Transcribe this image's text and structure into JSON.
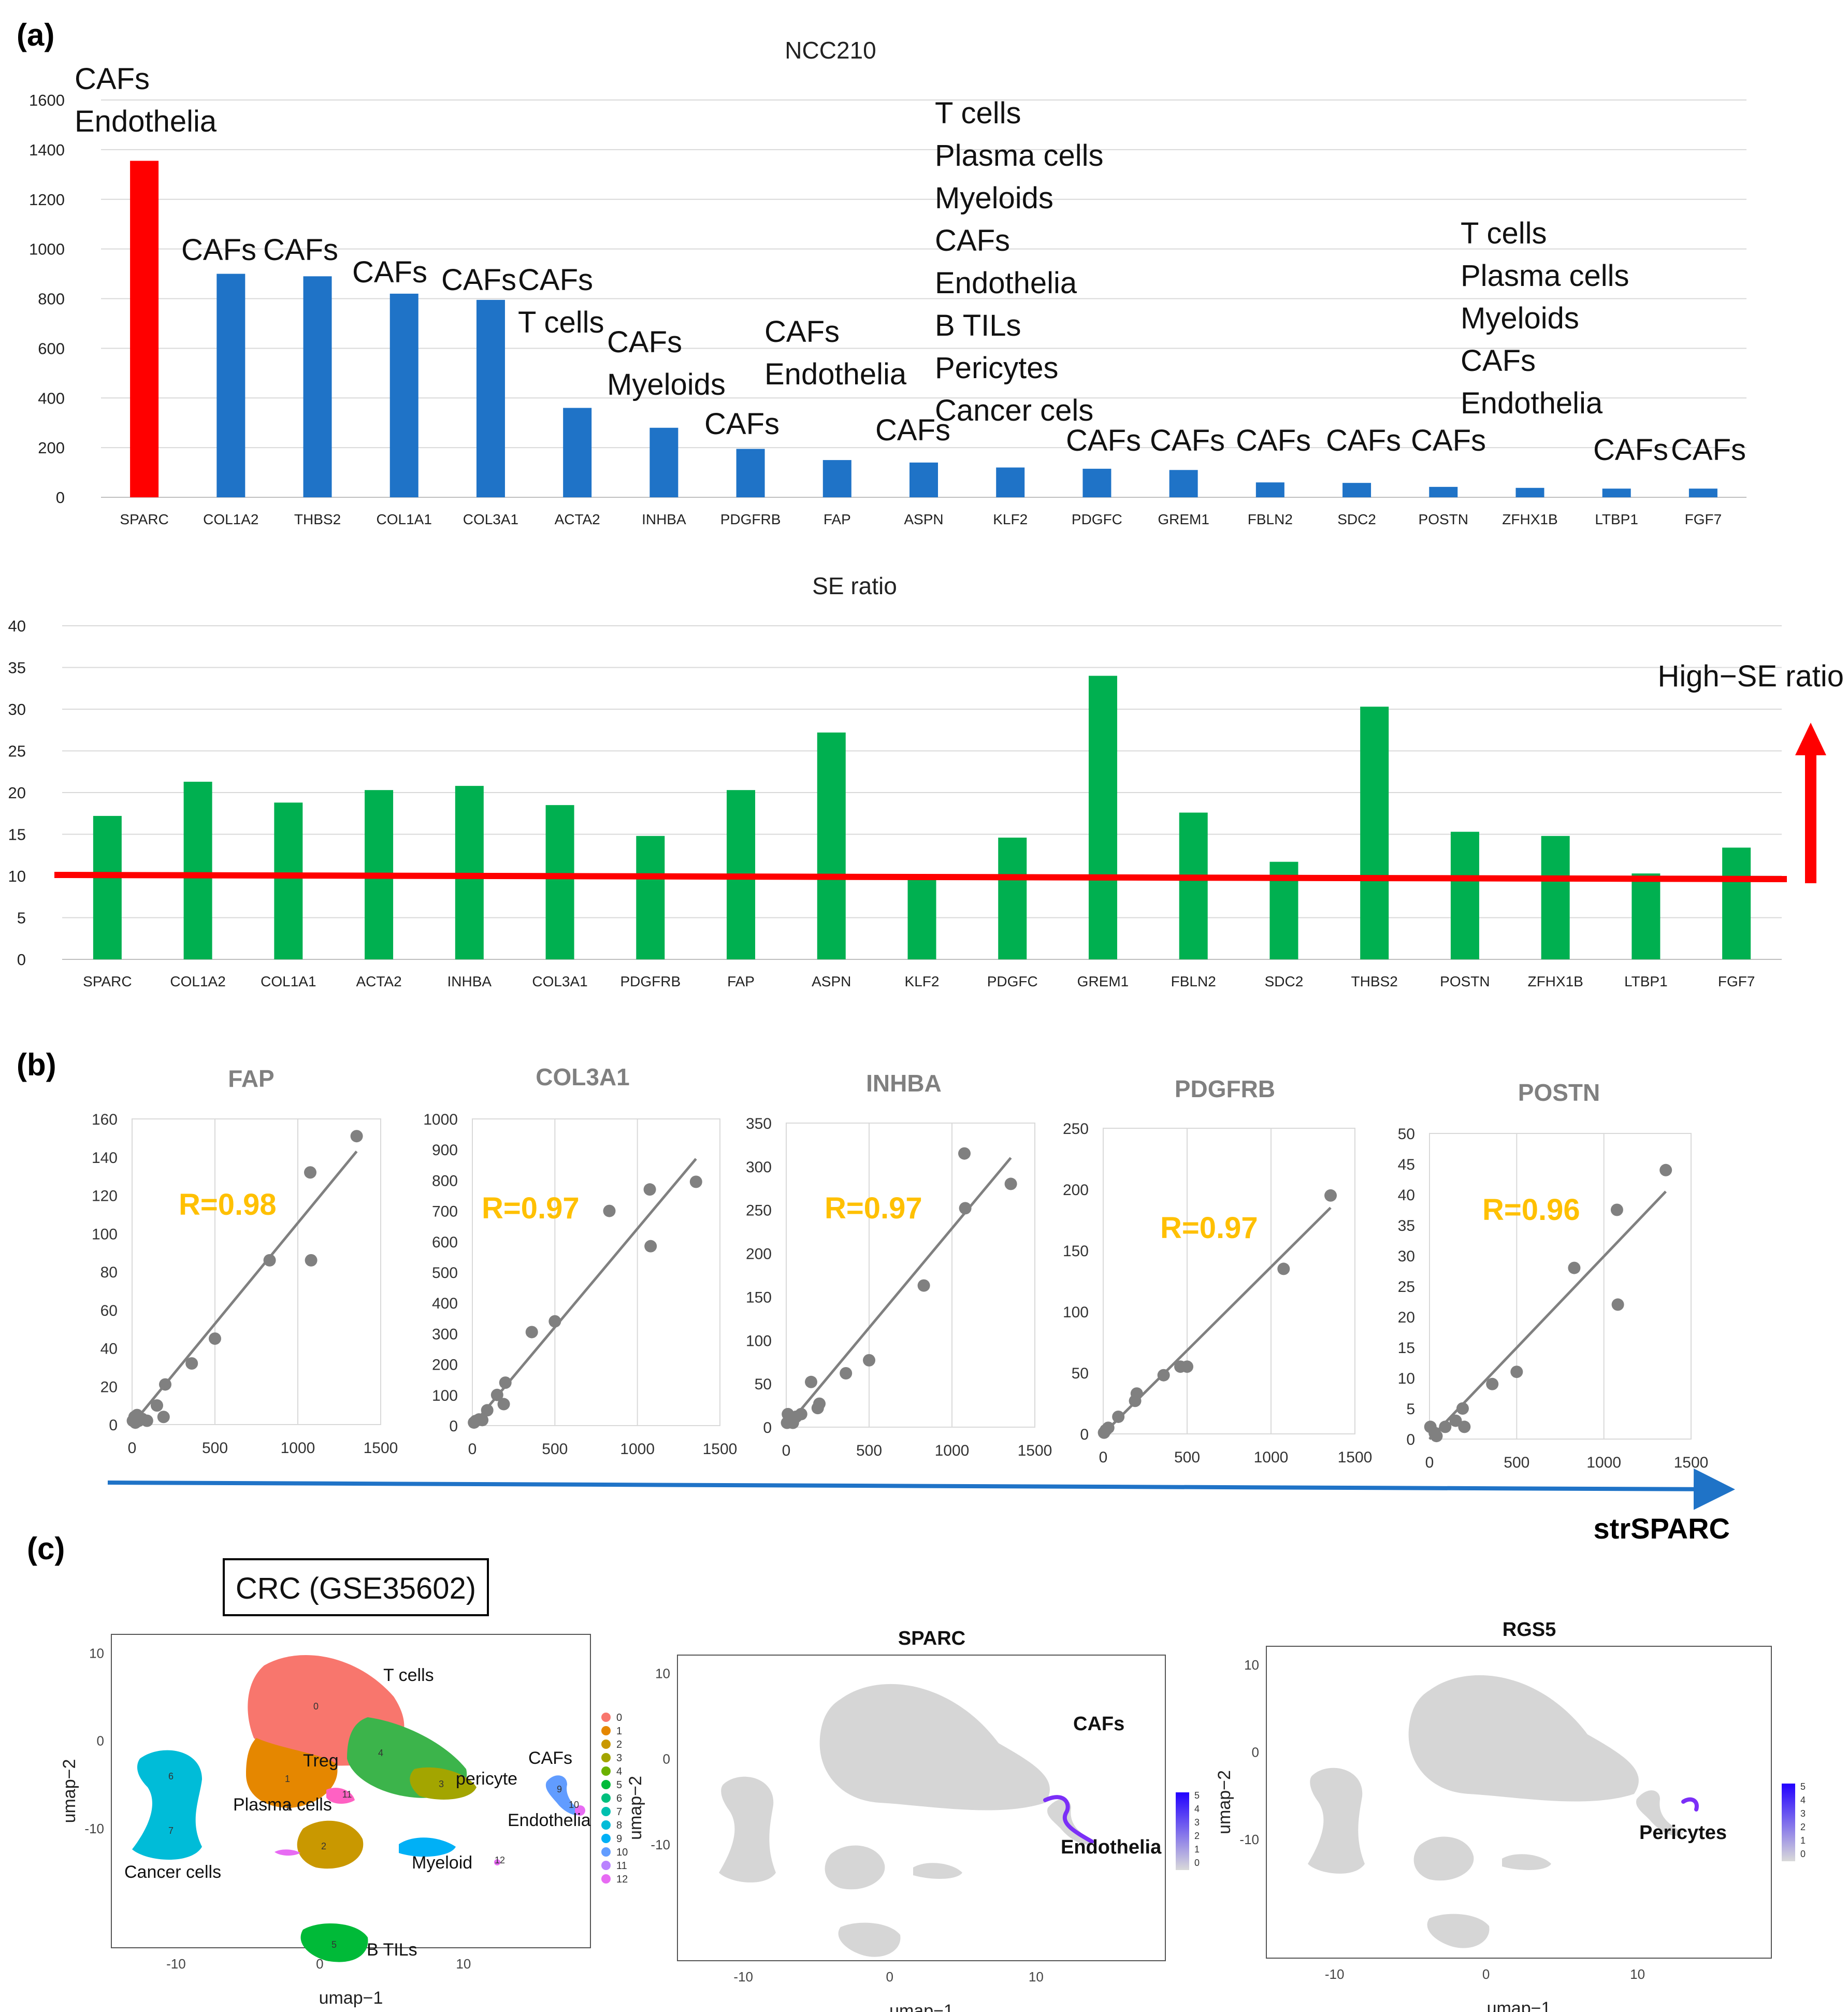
{
  "panels": {
    "a": "(a)",
    "b": "(b)",
    "c": "(c)"
  },
  "colors": {
    "sparc_bar": "#ff0000",
    "blue_bar": "#1f73c7",
    "green_bar": "#00b050",
    "threshold": "#ff0000",
    "axis_arrow": "#1f73c7",
    "scatter_point": "#808080",
    "r_value": "#ffc000",
    "title_gray": "#808080",
    "grid": "#d9d9d9"
  },
  "chart_data": [
    {
      "id": "ncc210",
      "type": "bar",
      "title": "NCC210",
      "ylim": [
        0,
        1600
      ],
      "yticks": [
        "0",
        "200",
        "400",
        "600",
        "800",
        "1000",
        "1200",
        "1400",
        "1600"
      ],
      "grid": true,
      "categories": [
        "SPARC",
        "COL1A2",
        "THBS2",
        "COL1A1",
        "COL3A1",
        "ACTA2",
        "INHBA",
        "PDGFRB",
        "FAP",
        "ASPN",
        "KLF2",
        "PDGFC",
        "GREM1",
        "FBLN2",
        "SDC2",
        "POSTN",
        "ZFHX1B",
        "LTBP1",
        "FGF7"
      ],
      "values": [
        1355,
        900,
        890,
        820,
        795,
        360,
        280,
        195,
        150,
        140,
        120,
        115,
        110,
        60,
        58,
        42,
        38,
        35,
        35
      ],
      "highlight_index": 0,
      "annotations": [
        {
          "lines": [
            "CAFs",
            "Endothelia"
          ]
        },
        {
          "lines": [
            "CAFs"
          ]
        },
        {
          "lines": [
            "CAFs"
          ]
        },
        {
          "lines": [
            "CAFs"
          ]
        },
        {
          "lines": [
            "CAFs"
          ]
        },
        {
          "lines": [
            "CAFs",
            "T cells"
          ]
        },
        {
          "lines": [
            "CAFs",
            "Myeloids"
          ]
        },
        {
          "lines": [
            "CAFs"
          ]
        },
        {
          "lines": [
            "CAFs",
            "Endothelia"
          ]
        },
        {
          "lines": [
            "CAFs"
          ]
        },
        {
          "lines": [
            "T cells",
            "Plasma cells",
            "Myeloids",
            "CAFs",
            "Endothelia",
            "B TILs",
            "Pericytes",
            "Cancer cels"
          ]
        },
        {
          "lines": [
            "CAFs"
          ]
        },
        {
          "lines": [
            "CAFs"
          ]
        },
        {
          "lines": [
            "CAFs"
          ]
        },
        {
          "lines": [
            "CAFs"
          ]
        },
        {
          "lines": [
            "CAFs"
          ]
        },
        {
          "lines": [
            "T cells",
            "Plasma cells",
            "Myeloids",
            "CAFs",
            "Endothelia"
          ]
        },
        {
          "lines": [
            "CAFs"
          ]
        },
        {
          "lines": [
            "CAFs"
          ]
        }
      ]
    },
    {
      "id": "se-ratio",
      "type": "bar",
      "title": "SE ratio",
      "ylim": [
        0,
        40
      ],
      "yticks": [
        "0",
        "5",
        "10",
        "15",
        "20",
        "25",
        "30",
        "35",
        "40"
      ],
      "grid": true,
      "categories": [
        "SPARC",
        "COL1A2",
        "COL1A1",
        "ACTA2",
        "INHBA",
        "COL3A1",
        "PDGFRB",
        "FAP",
        "ASPN",
        "KLF2",
        "PDGFC",
        "GREM1",
        "FBLN2",
        "SDC2",
        "THBS2",
        "POSTN",
        "ZFHX1B",
        "LTBP1",
        "FGF7"
      ],
      "values": [
        17.2,
        21.3,
        18.8,
        20.3,
        20.8,
        18.5,
        14.8,
        20.3,
        27.2,
        10.2,
        14.6,
        34.0,
        17.6,
        11.7,
        30.3,
        15.3,
        14.8,
        10.3,
        13.4
      ],
      "threshold": 10,
      "threshold_label": "High−SE ratio"
    },
    {
      "id": "fap",
      "type": "scatter",
      "title": "FAP",
      "r_label": "R=0.98",
      "xlim": [
        0,
        1500
      ],
      "ylim": [
        0,
        160
      ],
      "xticks": [
        "0",
        "500",
        "1000",
        "1500"
      ],
      "yticks": [
        "0",
        "20",
        "40",
        "60",
        "80",
        "100",
        "120",
        "140",
        "160"
      ],
      "trend": [
        [
          0,
          0
        ],
        [
          1355,
          143
        ]
      ],
      "points": [
        [
          5,
          2
        ],
        [
          15,
          4
        ],
        [
          20,
          1
        ],
        [
          30,
          5
        ],
        [
          40,
          2
        ],
        [
          60,
          3
        ],
        [
          90,
          2
        ],
        [
          150,
          10
        ],
        [
          190,
          4
        ],
        [
          200,
          21
        ],
        [
          360,
          32
        ],
        [
          500,
          45
        ],
        [
          830,
          86
        ],
        [
          1075,
          132
        ],
        [
          1080,
          86
        ],
        [
          1355,
          151
        ]
      ]
    },
    {
      "id": "col3a1",
      "type": "scatter",
      "title": "COL3A1",
      "r_label": "R=0.97",
      "xlim": [
        0,
        1500
      ],
      "ylim": [
        0,
        1000
      ],
      "xticks": [
        "0",
        "500",
        "1000",
        "1500"
      ],
      "yticks": [
        "0",
        "100",
        "200",
        "300",
        "400",
        "500",
        "600",
        "700",
        "800",
        "900",
        "1000"
      ],
      "trend": [
        [
          0,
          0
        ],
        [
          1355,
          870
        ]
      ],
      "points": [
        [
          10,
          10
        ],
        [
          20,
          15
        ],
        [
          40,
          20
        ],
        [
          60,
          18
        ],
        [
          90,
          50
        ],
        [
          150,
          100
        ],
        [
          190,
          70
        ],
        [
          200,
          140
        ],
        [
          360,
          305
        ],
        [
          500,
          340
        ],
        [
          830,
          700
        ],
        [
          1075,
          770
        ],
        [
          1080,
          585
        ],
        [
          1355,
          795
        ]
      ]
    },
    {
      "id": "inhba",
      "type": "scatter",
      "title": "INHBA",
      "r_label": "R=0.97",
      "xlim": [
        0,
        1500
      ],
      "ylim": [
        0,
        350
      ],
      "xticks": [
        "0",
        "500",
        "1000",
        "1500"
      ],
      "yticks": [
        "0",
        "50",
        "100",
        "150",
        "200",
        "250",
        "300",
        "350"
      ],
      "trend": [
        [
          0,
          0
        ],
        [
          1355,
          310
        ]
      ],
      "points": [
        [
          5,
          5
        ],
        [
          10,
          15
        ],
        [
          20,
          8
        ],
        [
          40,
          5
        ],
        [
          60,
          12
        ],
        [
          90,
          15
        ],
        [
          150,
          52
        ],
        [
          190,
          22
        ],
        [
          200,
          27
        ],
        [
          360,
          62
        ],
        [
          500,
          77
        ],
        [
          830,
          163
        ],
        [
          1075,
          315
        ],
        [
          1080,
          252
        ],
        [
          1355,
          280
        ]
      ]
    },
    {
      "id": "pdgfrb",
      "type": "scatter",
      "title": "PDGFRB",
      "r_label": "R=0.97",
      "xlim": [
        0,
        1500
      ],
      "ylim": [
        0,
        250
      ],
      "xticks": [
        "0",
        "500",
        "1000",
        "1500"
      ],
      "yticks": [
        "0",
        "50",
        "100",
        "150",
        "200",
        "250"
      ],
      "trend": [
        [
          0,
          0
        ],
        [
          1355,
          185
        ]
      ],
      "points": [
        [
          5,
          1
        ],
        [
          15,
          3
        ],
        [
          30,
          5
        ],
        [
          90,
          14
        ],
        [
          190,
          27
        ],
        [
          200,
          33
        ],
        [
          360,
          48
        ],
        [
          460,
          55
        ],
        [
          500,
          55
        ],
        [
          1075,
          135
        ],
        [
          1355,
          195
        ]
      ]
    },
    {
      "id": "postn",
      "type": "scatter",
      "title": "POSTN",
      "r_label": "R=0.96",
      "xlim": [
        0,
        1500
      ],
      "ylim": [
        0,
        50
      ],
      "xticks": [
        "0",
        "500",
        "1000",
        "1500"
      ],
      "yticks": [
        "0",
        "5",
        "10",
        "15",
        "20",
        "25",
        "30",
        "35",
        "40",
        "45",
        "50"
      ],
      "trend": [
        [
          0,
          0
        ],
        [
          1355,
          40.5
        ]
      ],
      "points": [
        [
          5,
          2
        ],
        [
          30,
          1
        ],
        [
          40,
          0.5
        ],
        [
          90,
          2
        ],
        [
          150,
          3
        ],
        [
          190,
          5
        ],
        [
          200,
          2
        ],
        [
          360,
          9
        ],
        [
          500,
          11
        ],
        [
          830,
          28
        ],
        [
          1075,
          37.5
        ],
        [
          1080,
          22
        ],
        [
          1355,
          44
        ]
      ]
    }
  ],
  "b_axis_label": "strSPARC",
  "panel_c": {
    "dataset_label": "CRC (GSE35602)",
    "umap1": {
      "xlabel": "umap−1",
      "ylabel": "umap−2",
      "xticks": [
        "-10",
        "0",
        "10"
      ],
      "yticks": [
        "10",
        "0",
        "-10"
      ],
      "cluster_labels": [
        "T cells",
        "Treg",
        "Plasma cells",
        "Myeloid",
        "Cancer cells",
        "B TILs",
        "CAFs",
        "pericyte",
        "Endothelia"
      ],
      "cluster_numbers": [
        "0",
        "1",
        "2",
        "3",
        "4",
        "5",
        "6",
        "7",
        "8",
        "9",
        "10",
        "11",
        "12"
      ],
      "legend": [
        "0",
        "1",
        "2",
        "3",
        "4",
        "5",
        "6",
        "7",
        "8",
        "9",
        "10",
        "11",
        "12"
      ],
      "legend_colors": [
        "#f8766d",
        "#e58700",
        "#c99800",
        "#a3a500",
        "#6bb100",
        "#00ba38",
        "#00bf7d",
        "#00c0af",
        "#00bcd8",
        "#00b0f6",
        "#619cff",
        "#b983ff",
        "#e76bf3"
      ]
    },
    "umap2": {
      "title": "SPARC",
      "xlabel": "umap−1",
      "ylabel": "umap−2",
      "xticks": [
        "-10",
        "0",
        "10"
      ],
      "yticks": [
        "10",
        "0",
        "-10"
      ],
      "labels": [
        "CAFs",
        "Endothelia"
      ],
      "scale_ticks": [
        "5",
        "4",
        "3",
        "2",
        "1",
        "0"
      ]
    },
    "umap3": {
      "title": "RGS5",
      "xlabel": "umap−1",
      "ylabel": "umap−2",
      "xticks": [
        "-10",
        "0",
        "10"
      ],
      "yticks": [
        "10",
        "0",
        "-10"
      ],
      "labels": [
        "Pericytes"
      ],
      "scale_ticks": [
        "5",
        "4",
        "3",
        "2",
        "1",
        "0"
      ]
    }
  }
}
